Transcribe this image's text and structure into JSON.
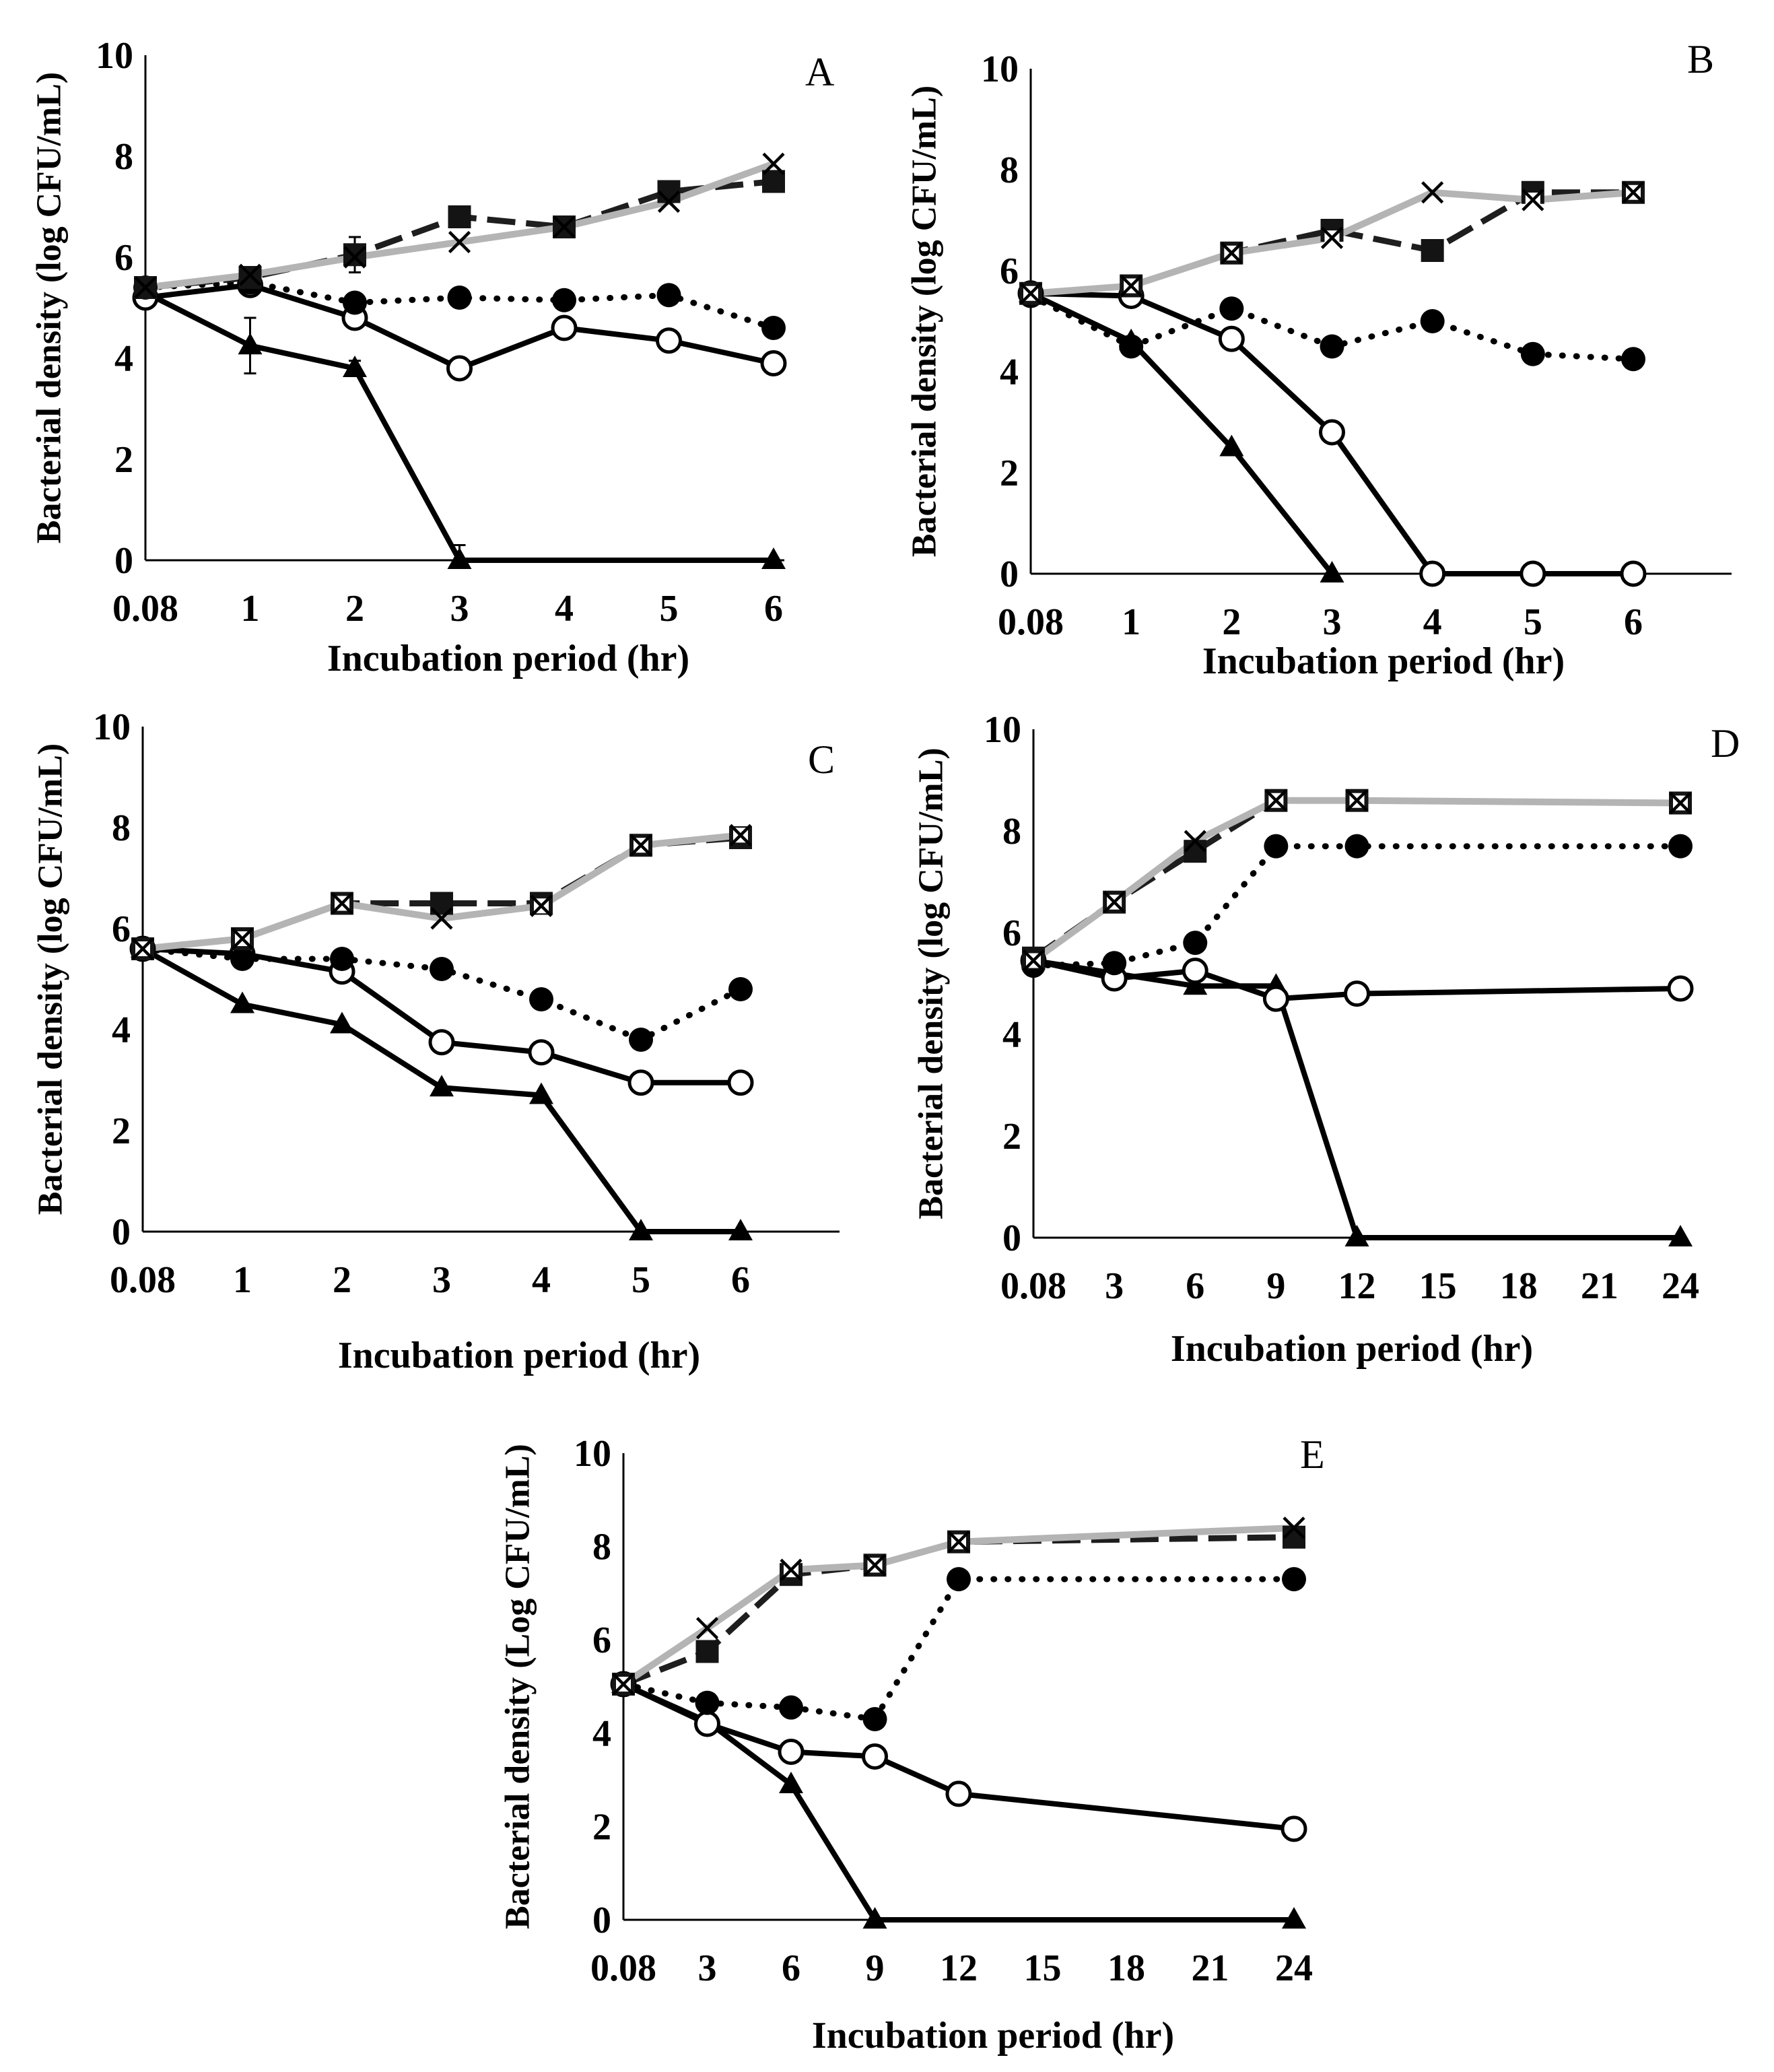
{
  "chart_data": [
    {
      "panel": "A",
      "type": "line",
      "xlabel": "Incubation period (hr)",
      "ylabel": "Bacterial density (log CFU/mL)",
      "ylim": [
        0,
        10
      ],
      "yticks": [
        "0",
        "2",
        "4",
        "6",
        "8",
        "10"
      ],
      "categories": [
        "0.08",
        "1",
        "2",
        "3",
        "4",
        "5",
        "6"
      ],
      "series": [
        {
          "marker": "filled-triangle-marker",
          "color": "#000000",
          "values": [
            5.3,
            4.25,
            3.8,
            0,
            null,
            null,
            0
          ],
          "errors": [
            null,
            0.55,
            0.15,
            0.3,
            null,
            null,
            null
          ]
        },
        {
          "marker": "open-circle-marker",
          "color": "#000000",
          "values": [
            5.2,
            5.45,
            4.8,
            3.8,
            4.6,
            4.35,
            3.9
          ]
        },
        {
          "marker": "filled-circle-marker",
          "color": "#000000",
          "values": [
            5.4,
            5.5,
            5.1,
            5.2,
            5.15,
            5.25,
            4.6
          ]
        },
        {
          "marker": "filled-square-marker",
          "color": "#1e1e1e",
          "values": [
            5.4,
            5.6,
            6.05,
            6.8,
            6.6,
            7.3,
            7.5
          ],
          "errors": [
            null,
            null,
            0.35,
            null,
            null,
            null,
            null
          ]
        },
        {
          "marker": "cross-marker",
          "color": "#b4b4b4",
          "values": [
            5.4,
            5.65,
            6.0,
            6.3,
            6.6,
            7.1,
            7.85
          ]
        }
      ]
    },
    {
      "panel": "B",
      "type": "line",
      "xlabel": "Incubation period (hr)",
      "ylabel": "Bacterial density (log CFU/mL)",
      "ylim": [
        0,
        10
      ],
      "yticks": [
        "0",
        "2",
        "4",
        "6",
        "8",
        "10"
      ],
      "categories": [
        "0.08",
        "1",
        "2",
        "3",
        "4",
        "5",
        "6"
      ],
      "series": [
        {
          "marker": "filled-triangle-marker",
          "color": "#000000",
          "values": [
            5.55,
            4.6,
            2.5,
            0,
            null,
            null,
            null
          ]
        },
        {
          "marker": "open-circle-marker",
          "color": "#000000",
          "values": [
            5.55,
            5.5,
            4.65,
            2.8,
            0,
            0,
            0
          ]
        },
        {
          "marker": "filled-circle-marker",
          "color": "#000000",
          "values": [
            5.5,
            4.5,
            5.25,
            4.5,
            5.0,
            4.35,
            4.25
          ]
        },
        {
          "marker": "filled-square-marker",
          "color": "#1e1e1e",
          "values": [
            5.55,
            5.7,
            6.35,
            6.8,
            6.4,
            7.55,
            7.55
          ]
        },
        {
          "marker": "cross-marker",
          "color": "#b4b4b4",
          "values": [
            5.55,
            5.7,
            6.35,
            6.65,
            7.55,
            7.4,
            7.55
          ]
        }
      ]
    },
    {
      "panel": "C",
      "type": "line",
      "xlabel": "Incubation period (hr)",
      "ylabel": "Bacterial density (log CFU/mL)",
      "ylim": [
        0,
        10
      ],
      "yticks": [
        "0",
        "2",
        "4",
        "6",
        "8",
        "10"
      ],
      "categories": [
        "0.08",
        "1",
        "2",
        "3",
        "4",
        "5",
        "6"
      ],
      "series": [
        {
          "marker": "filled-triangle-marker",
          "color": "#000000",
          "values": [
            5.6,
            4.5,
            4.1,
            2.85,
            2.7,
            0,
            0
          ]
        },
        {
          "marker": "open-circle-marker",
          "color": "#000000",
          "values": [
            5.6,
            5.5,
            5.15,
            3.75,
            3.55,
            2.95,
            2.95
          ]
        },
        {
          "marker": "filled-circle-marker",
          "color": "#000000",
          "values": [
            5.6,
            5.4,
            5.4,
            5.2,
            4.6,
            3.8,
            4.8
          ]
        },
        {
          "marker": "filled-square-marker",
          "color": "#1e1e1e",
          "values": [
            5.6,
            5.8,
            6.5,
            6.5,
            6.5,
            7.65,
            7.8
          ]
        },
        {
          "marker": "cross-marker",
          "color": "#b4b4b4",
          "values": [
            5.6,
            5.8,
            6.5,
            6.2,
            6.45,
            7.65,
            7.85
          ]
        }
      ]
    },
    {
      "panel": "D",
      "type": "line",
      "xlabel": "Incubation period (hr)",
      "ylabel": "Bacterial density (log CFU/mL)",
      "ylim": [
        0,
        10
      ],
      "yticks": [
        "0",
        "2",
        "4",
        "6",
        "8",
        "10"
      ],
      "categories": [
        "0.08",
        "3",
        "6",
        "9",
        "12",
        "15",
        "18",
        "21",
        "24"
      ],
      "series": [
        {
          "marker": "filled-triangle-marker",
          "color": "#000000",
          "values": [
            5.45,
            5.2,
            4.95,
            4.95,
            0,
            null,
            null,
            null,
            0
          ]
        },
        {
          "marker": "open-circle-marker",
          "color": "#000000",
          "values": [
            5.45,
            5.1,
            5.25,
            4.7,
            4.8,
            null,
            null,
            null,
            4.9
          ]
        },
        {
          "marker": "filled-circle-marker",
          "color": "#000000",
          "values": [
            5.35,
            5.4,
            5.8,
            7.7,
            7.7,
            null,
            null,
            null,
            7.7
          ]
        },
        {
          "marker": "filled-square-marker",
          "color": "#1e1e1e",
          "values": [
            5.5,
            6.6,
            7.6,
            8.6,
            8.6,
            null,
            null,
            null,
            8.55
          ]
        },
        {
          "marker": "cross-marker",
          "color": "#b4b4b4",
          "values": [
            5.45,
            6.6,
            7.8,
            8.6,
            8.6,
            null,
            null,
            null,
            8.55
          ]
        }
      ]
    },
    {
      "panel": "E",
      "type": "line",
      "xlabel": "Incubation period (hr)",
      "ylabel": "Bacterial density (Log CFU/mL)",
      "ylim": [
        0,
        10
      ],
      "yticks": [
        "0",
        "2",
        "4",
        "6",
        "8",
        "10"
      ],
      "categories": [
        "0.08",
        "3",
        "6",
        "9",
        "12",
        "15",
        "18",
        "21",
        "24"
      ],
      "series": [
        {
          "marker": "filled-triangle-marker",
          "color": "#000000",
          "values": [
            5.05,
            4.25,
            2.9,
            0,
            null,
            null,
            null,
            null,
            0
          ]
        },
        {
          "marker": "open-circle-marker",
          "color": "#000000",
          "values": [
            5.05,
            4.2,
            3.6,
            3.5,
            2.7,
            null,
            null,
            null,
            1.95
          ],
          "errors": [
            null,
            null,
            0.15,
            null,
            null,
            null,
            null,
            null,
            null
          ]
        },
        {
          "marker": "filled-circle-marker",
          "color": "#000000",
          "values": [
            5.05,
            4.65,
            4.55,
            4.3,
            7.3,
            null,
            null,
            null,
            7.3
          ]
        },
        {
          "marker": "filled-square-marker",
          "color": "#1e1e1e",
          "values": [
            5.05,
            5.75,
            7.4,
            7.6,
            8.1,
            null,
            null,
            null,
            8.2
          ],
          "errors": [
            null,
            null,
            null,
            0.2,
            null,
            null,
            null,
            null,
            null
          ]
        },
        {
          "marker": "cross-marker",
          "color": "#b4b4b4",
          "values": [
            5.05,
            6.25,
            7.5,
            7.6,
            8.1,
            null,
            null,
            null,
            8.4
          ]
        }
      ]
    }
  ]
}
